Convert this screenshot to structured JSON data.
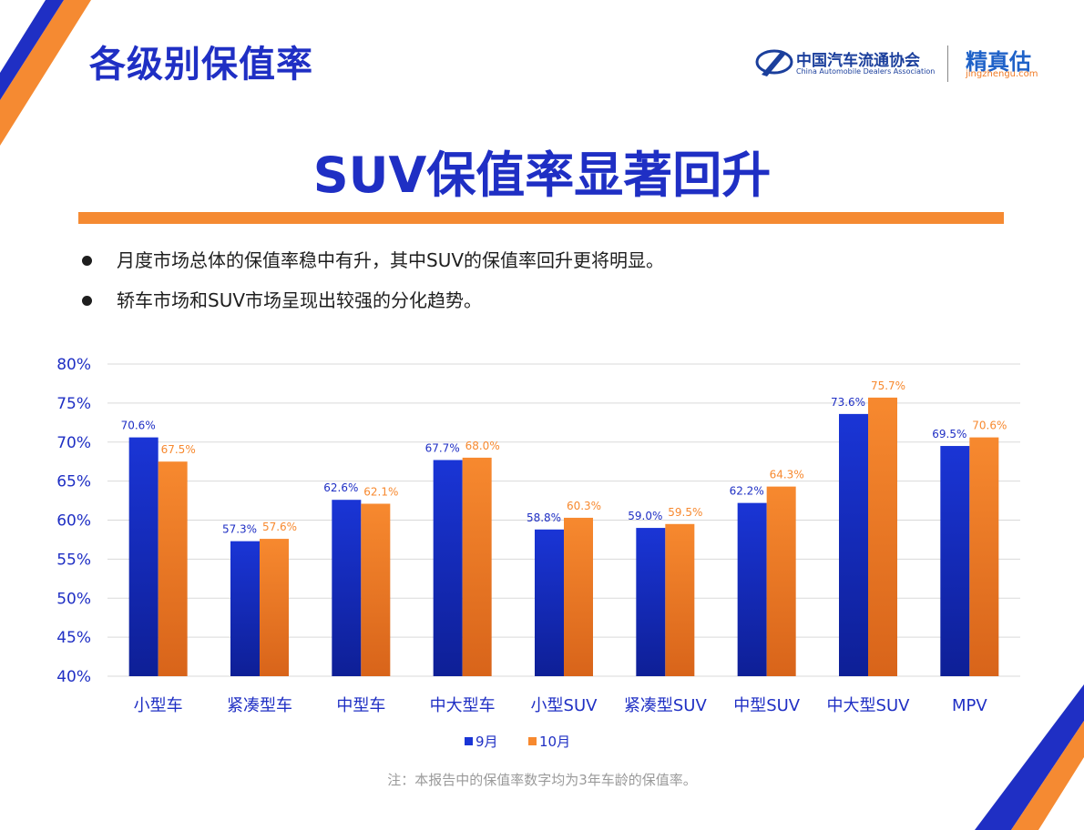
{
  "section_title": "各级别保值率",
  "logos": {
    "association_cn": "中国汽车流通协会",
    "association_en": "China Automobile Dealers Association",
    "brand": "精真估",
    "brand_url": "jingzhengu.com"
  },
  "headline": "SUV保值率显著回升",
  "bullets": [
    "月度市场总体的保值率稳中有升，其中SUV的保值率回升更将明显。",
    "轿车市场和SUV市场呈现出较强的分化趋势。"
  ],
  "colors": {
    "accent_blue": "#1f2fc4",
    "accent_orange": "#f58a32",
    "series_sep": "#1a35d6",
    "series_oct": "#f7892f"
  },
  "chart_data": {
    "type": "bar",
    "categories": [
      "小型车",
      "紧凑型车",
      "中型车",
      "中大型车",
      "小型SUV",
      "紧凑型SUV",
      "中型SUV",
      "中大型SUV",
      "MPV"
    ],
    "series": [
      {
        "name": "9月",
        "values": [
          70.6,
          57.3,
          62.6,
          67.7,
          58.8,
          59.0,
          62.2,
          73.6,
          69.5
        ],
        "labels": [
          "70.6%",
          "57.3%",
          "62.6%",
          "67.7%",
          "58.8%",
          "59.0%",
          "62.2%",
          "73.6%",
          "69.5%"
        ]
      },
      {
        "name": "10月",
        "values": [
          67.5,
          57.6,
          62.1,
          68.0,
          60.3,
          59.5,
          64.3,
          75.7,
          70.6
        ],
        "labels": [
          "67.5%",
          "57.6%",
          "62.1%",
          "68.0%",
          "60.3%",
          "59.5%",
          "64.3%",
          "75.7%",
          "70.6%"
        ]
      }
    ],
    "ylim": [
      40,
      80
    ],
    "yticks": [
      "40%",
      "45%",
      "50%",
      "55%",
      "60%",
      "65%",
      "70%",
      "75%",
      "80%"
    ],
    "grid": true,
    "legend_position": "bottom-center"
  },
  "footnote": "注：本报告中的保值率数字均为3年车龄的保值率。"
}
